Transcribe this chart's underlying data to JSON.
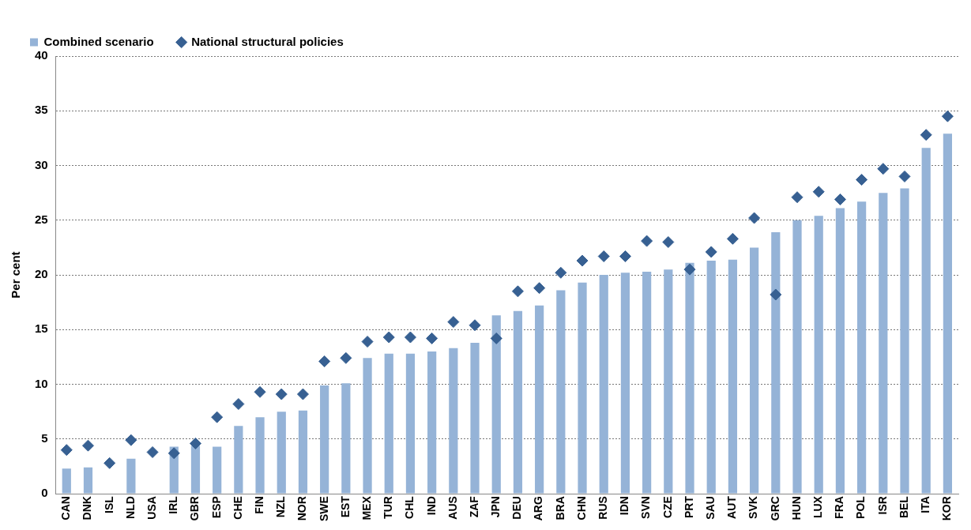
{
  "chart_data": {
    "type": "bar",
    "ylabel": "Per cent",
    "categories": [
      "CAN",
      "DNK",
      "ISL",
      "NLD",
      "USA",
      "IRL",
      "GBR",
      "ESP",
      "CHE",
      "FIN",
      "NZL",
      "NOR",
      "SWE",
      "EST",
      "MEX",
      "TUR",
      "CHL",
      "IND",
      "AUS",
      "ZAF",
      "JPN",
      "DEU",
      "ARG",
      "BRA",
      "CHN",
      "RUS",
      "IDN",
      "SVN",
      "CZE",
      "PRT",
      "SAU",
      "AUT",
      "SVK",
      "GRC",
      "HUN",
      "LUX",
      "FRA",
      "POL",
      "ISR",
      "BEL",
      "ITA",
      "KOR"
    ],
    "series": [
      {
        "name": "Combined scenario",
        "color": "#95b3d7",
        "values": [
          2.3,
          2.4,
          null,
          3.2,
          null,
          4.3,
          4.4,
          4.3,
          6.2,
          7.0,
          7.5,
          7.6,
          9.9,
          10.1,
          12.4,
          12.8,
          12.8,
          13.0,
          13.3,
          13.8,
          16.3,
          16.7,
          17.2,
          18.6,
          19.3,
          20.0,
          20.2,
          20.3,
          20.5,
          21.1,
          21.3,
          21.4,
          22.5,
          23.9,
          25.0,
          25.4,
          26.1,
          26.7,
          27.5,
          27.9,
          31.6,
          32.9
        ]
      },
      {
        "name": "National structural policies",
        "type": "scatter",
        "color": "#376092",
        "marker": "diamond",
        "values": [
          4.0,
          4.4,
          2.8,
          4.9,
          3.8,
          3.7,
          4.6,
          7.0,
          8.2,
          9.3,
          9.1,
          9.1,
          12.1,
          12.4,
          13.9,
          14.3,
          14.3,
          14.2,
          15.7,
          15.4,
          14.2,
          18.5,
          18.8,
          20.2,
          21.3,
          21.7,
          21.7,
          23.1,
          23.0,
          20.5,
          22.1,
          23.3,
          25.2,
          18.2,
          27.1,
          27.6,
          26.9,
          28.7,
          29.7,
          29.0,
          32.8,
          34.5
        ]
      }
    ],
    "ylim": [
      0,
      40
    ],
    "yticks": [
      0,
      5,
      10,
      15,
      20,
      25,
      30,
      35,
      40
    ],
    "grid": "y",
    "legend": "top left"
  }
}
